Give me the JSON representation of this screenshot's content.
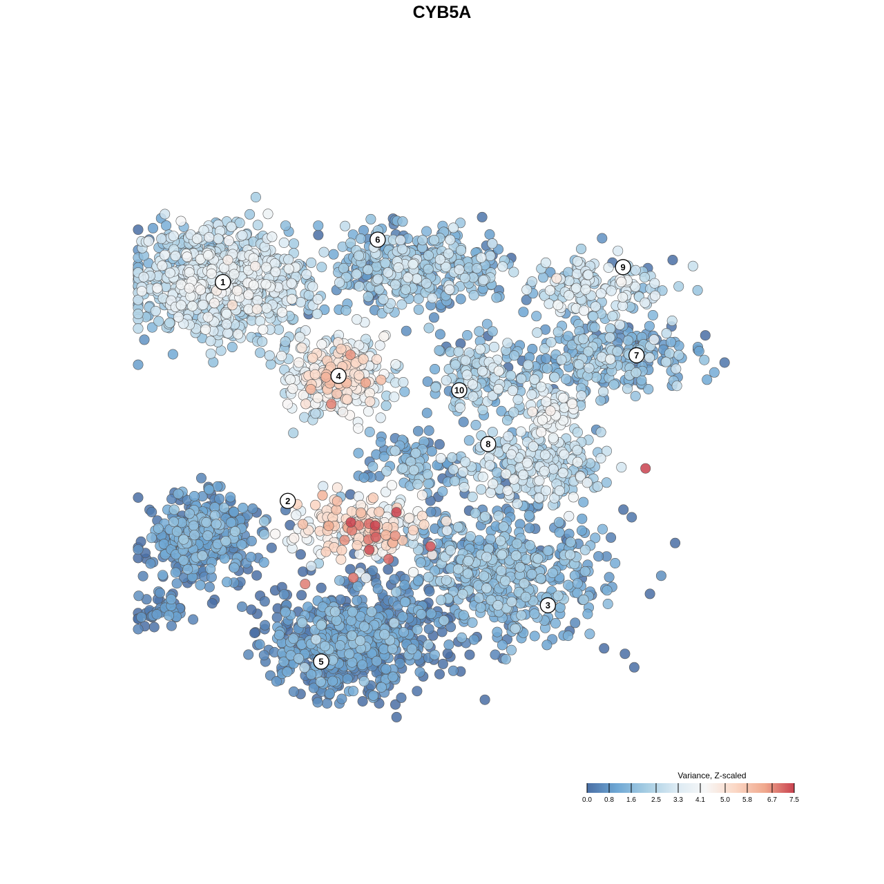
{
  "chart_data": {
    "type": "scatter",
    "title": "CYB5A",
    "xlabel": "",
    "ylabel": "",
    "xlim": [
      0,
      100
    ],
    "ylim": [
      0,
      100
    ],
    "grid": false,
    "axes_visible": false,
    "point_fill_opacity": 0.85,
    "point_stroke_color": "#555555",
    "color_scale": {
      "title": "Variance, Z-scaled",
      "min": 0.0,
      "max": 7.5,
      "tick_labels": [
        "0.0",
        "0.8",
        "1.6",
        "2.5",
        "3.3",
        "4.1",
        "5.0",
        "5.8",
        "6.7",
        "7.5"
      ],
      "tick_values": [
        0.0,
        0.8,
        1.6,
        2.5,
        3.3,
        4.1,
        5.0,
        5.8,
        6.7,
        7.5
      ],
      "colors": [
        "#4a6fa5",
        "#6ea7d4",
        "#a6cde3",
        "#dbeaf3",
        "#f7f7f7",
        "#fbd8c6",
        "#f0a98e",
        "#c9424f"
      ],
      "legend_placement": "bottom-right"
    },
    "clusters": [
      {
        "label": "1",
        "x": 13.2,
        "y": 75.3,
        "sx": 6.8,
        "sy": 4.4,
        "n": 760,
        "mean": 3.0,
        "sd": 0.7
      },
      {
        "label": "2",
        "x": 10.0,
        "y": 35.0,
        "sx": 4.6,
        "sy": 3.6,
        "n": 330,
        "mean": 1.0,
        "sd": 0.6
      },
      {
        "label": "3",
        "x": 57.0,
        "y": 28.5,
        "sx": 8.0,
        "sy": 5.0,
        "n": 520,
        "mean": 1.6,
        "sd": 0.6
      },
      {
        "label": "4",
        "x": 31.2,
        "y": 60.3,
        "sx": 4.0,
        "sy": 3.4,
        "n": 280,
        "mean": 3.9,
        "sd": 0.9
      },
      {
        "label": "5",
        "x": 33.0,
        "y": 17.5,
        "sx": 6.6,
        "sy": 4.2,
        "n": 620,
        "mean": 1.0,
        "sd": 0.6
      },
      {
        "label": "6",
        "x": 44.0,
        "y": 77.5,
        "sx": 7.2,
        "sy": 3.2,
        "n": 360,
        "mean": 2.0,
        "sd": 0.8
      },
      {
        "label": "7",
        "x": 73.0,
        "y": 63.5,
        "sx": 7.0,
        "sy": 3.0,
        "n": 230,
        "mean": 1.8,
        "sd": 0.8
      },
      {
        "label": "8",
        "x": 61.5,
        "y": 45.0,
        "sx": 6.0,
        "sy": 3.0,
        "n": 210,
        "mean": 2.7,
        "sd": 0.8
      },
      {
        "label": "9",
        "x": 72.0,
        "y": 74.5,
        "sx": 5.6,
        "sy": 2.8,
        "n": 140,
        "mean": 3.0,
        "sd": 0.7
      },
      {
        "label": "10",
        "x": 53.0,
        "y": 60.5,
        "sx": 4.0,
        "sy": 3.4,
        "n": 140,
        "mean": 2.3,
        "sd": 0.9
      },
      {
        "label": "",
        "x": 34.5,
        "y": 36.0,
        "sx": 5.0,
        "sy": 2.8,
        "n": 190,
        "mean": 4.6,
        "sd": 1.0
      },
      {
        "label": "",
        "x": 3.5,
        "y": 23.0,
        "sx": 2.8,
        "sy": 1.6,
        "n": 45,
        "mean": 0.6,
        "sd": 0.5
      },
      {
        "label": "",
        "x": 43.0,
        "y": 46.5,
        "sx": 4.0,
        "sy": 2.4,
        "n": 80,
        "mean": 1.4,
        "sd": 0.7
      },
      {
        "label": "",
        "x": 64.0,
        "y": 54.0,
        "sx": 2.6,
        "sy": 3.0,
        "n": 90,
        "mean": 3.2,
        "sd": 0.7
      }
    ],
    "label_positions": [
      {
        "label": "1",
        "x": 13.2,
        "y": 75.3
      },
      {
        "label": "2",
        "x": 23.3,
        "y": 40.3
      },
      {
        "label": "3",
        "x": 63.8,
        "y": 23.6
      },
      {
        "label": "4",
        "x": 31.2,
        "y": 60.3
      },
      {
        "label": "5",
        "x": 28.5,
        "y": 14.6
      },
      {
        "label": "6",
        "x": 37.3,
        "y": 82.1
      },
      {
        "label": "7",
        "x": 77.6,
        "y": 63.6
      },
      {
        "label": "8",
        "x": 54.5,
        "y": 49.4
      },
      {
        "label": "9",
        "x": 75.5,
        "y": 77.7
      },
      {
        "label": "10",
        "x": 50.0,
        "y": 58.0
      }
    ]
  }
}
